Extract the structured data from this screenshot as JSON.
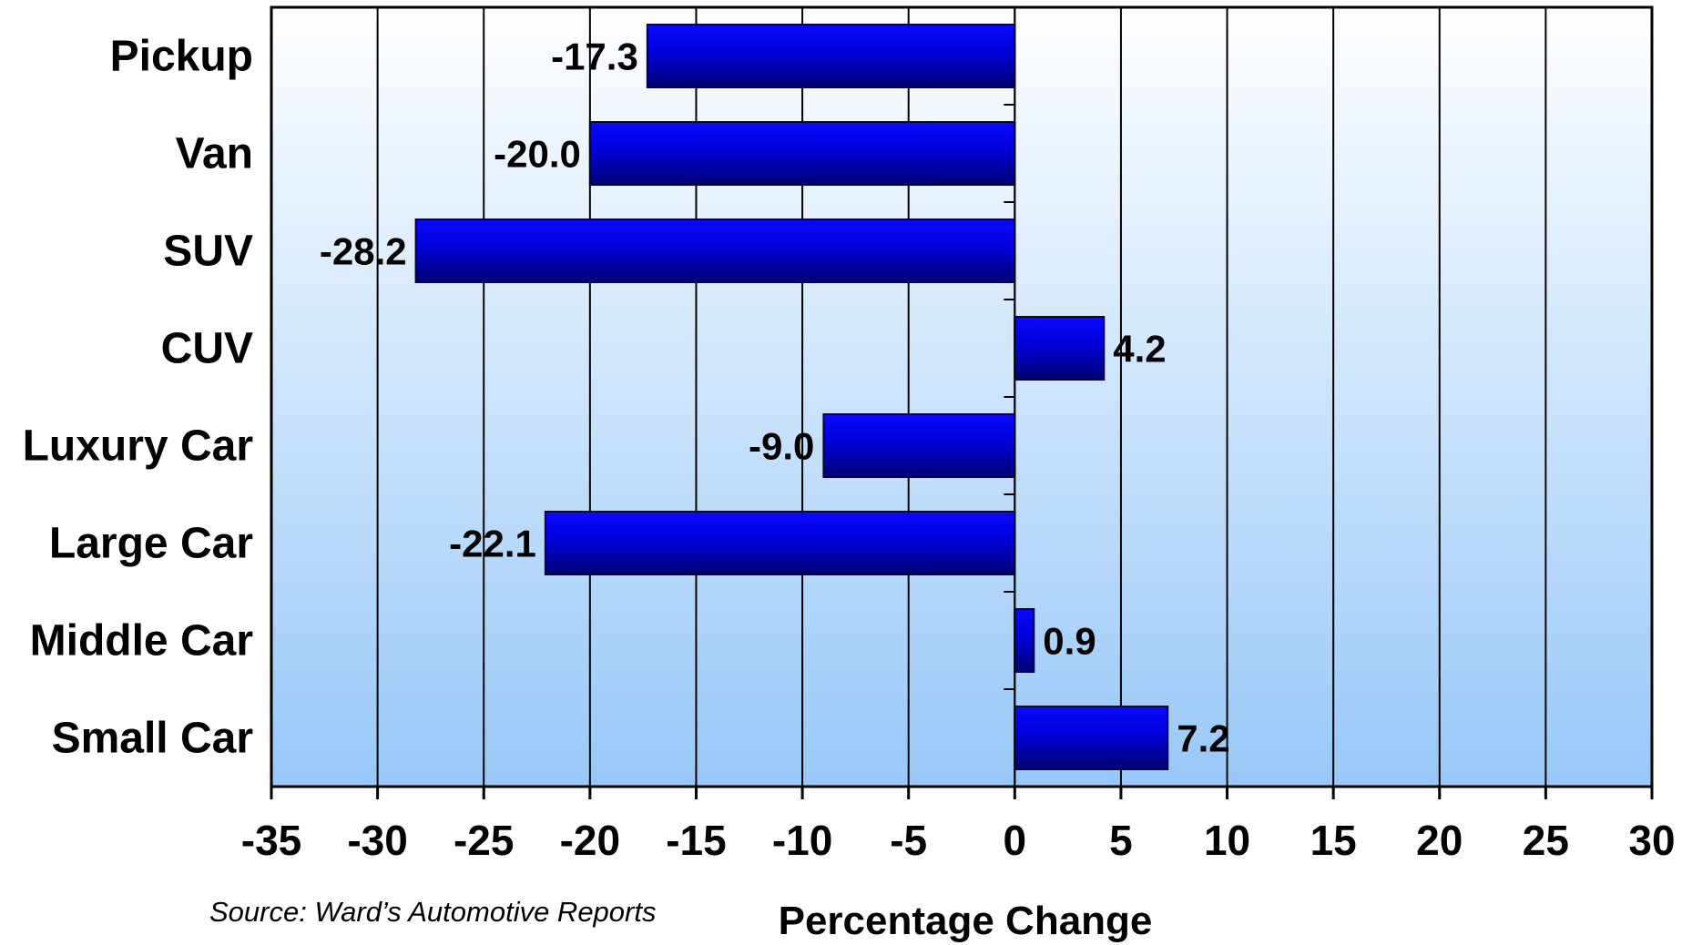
{
  "chart_data": {
    "type": "bar",
    "orientation": "horizontal",
    "categories": [
      "Pickup",
      "Van",
      "SUV",
      "CUV",
      "Luxury Car",
      "Large Car",
      "Middle Car",
      "Small Car"
    ],
    "values": [
      -17.3,
      -20.0,
      -28.2,
      4.2,
      -9.0,
      -22.1,
      0.9,
      7.2
    ],
    "value_labels": [
      "-17.3",
      "-20.0",
      "-28.2",
      "4.2",
      "-9.0",
      "-22.1",
      "0.9",
      "7.2"
    ],
    "xlabel": "Percentage Change",
    "xlim": [
      -35,
      30
    ],
    "xticks": [
      -35,
      -30,
      -25,
      -20,
      -15,
      -10,
      -5,
      0,
      5,
      10,
      15,
      20,
      25,
      30
    ],
    "grid": "vertical",
    "colors": {
      "bar_light": "#0a0aff",
      "bar_dark": "#000070",
      "bg_top": "#ffffff",
      "bg_bottom": "#98c8f8"
    }
  },
  "source_note": "Source: Ward’s Automotive Reports"
}
